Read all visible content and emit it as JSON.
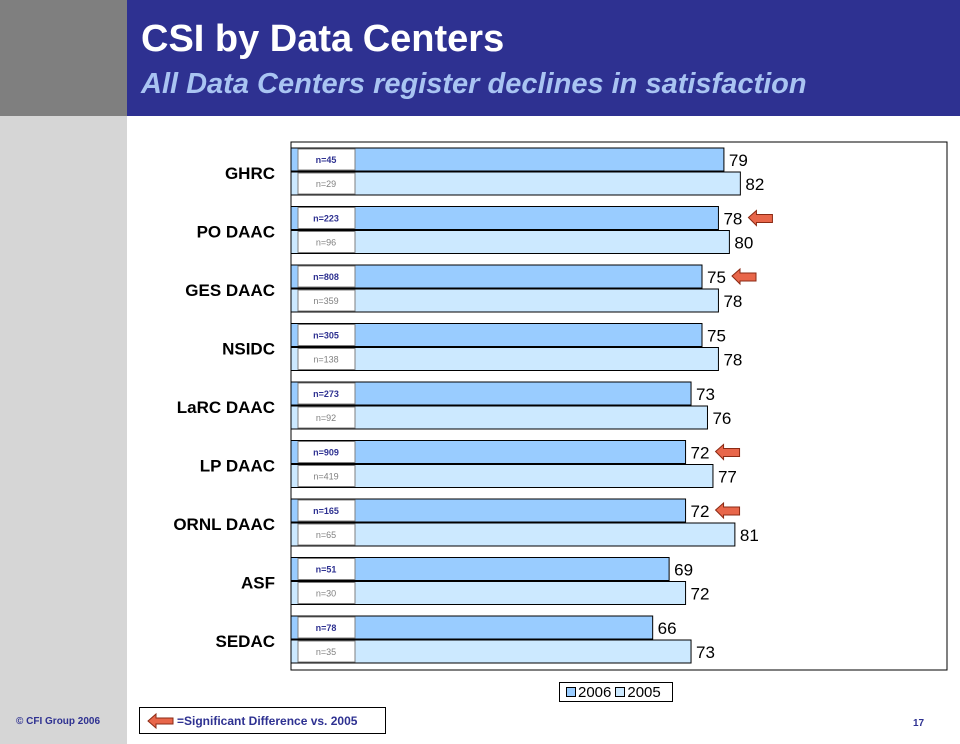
{
  "slide": {
    "title": "CSI by Data Centers",
    "subtitle": "All Data Centers register declines in satisfaction",
    "copyright": "© CFI Group 2006",
    "page_number": "17",
    "significance_note": "=Significant Difference  vs. 2005"
  },
  "colors": {
    "header_bg": "#2e3191",
    "title_text": "#ffffff",
    "subtitle_text": "#a9c4f2",
    "bar_2006": "#99ccff",
    "bar_2005": "#cce9ff",
    "n_2006_text": "#2e3191",
    "n_2005_text": "#808080",
    "category_text": "#000080",
    "arrow_fill": "#e8664a",
    "arrow_stroke": "#8b2a14"
  },
  "chart_data": {
    "type": "bar",
    "orientation": "horizontal",
    "categories": [
      "GHRC",
      "PO DAAC",
      "GES DAAC",
      "NSIDC",
      "LaRC DAAC",
      "LP DAAC",
      "ORNL DAAC",
      "ASF",
      "SEDAC"
    ],
    "series": [
      {
        "name": "2006",
        "values": [
          79,
          78,
          75,
          75,
          73,
          72,
          72,
          69,
          66
        ],
        "n_labels": [
          "n=45",
          "n=223",
          "n=808",
          "n=305",
          "n=273",
          "n=909",
          "n=165",
          "n=51",
          "n=78"
        ]
      },
      {
        "name": "2005",
        "values": [
          82,
          80,
          78,
          78,
          76,
          77,
          81,
          72,
          73
        ],
        "n_labels": [
          "n=29",
          "n=96",
          "n=359",
          "n=138",
          "n=92",
          "n=419",
          "n=65",
          "n=30",
          "n=35"
        ]
      }
    ],
    "significant_difference": [
      false,
      true,
      true,
      false,
      false,
      true,
      true,
      false,
      false
    ],
    "legend_position": "bottom-right",
    "grid": false
  }
}
